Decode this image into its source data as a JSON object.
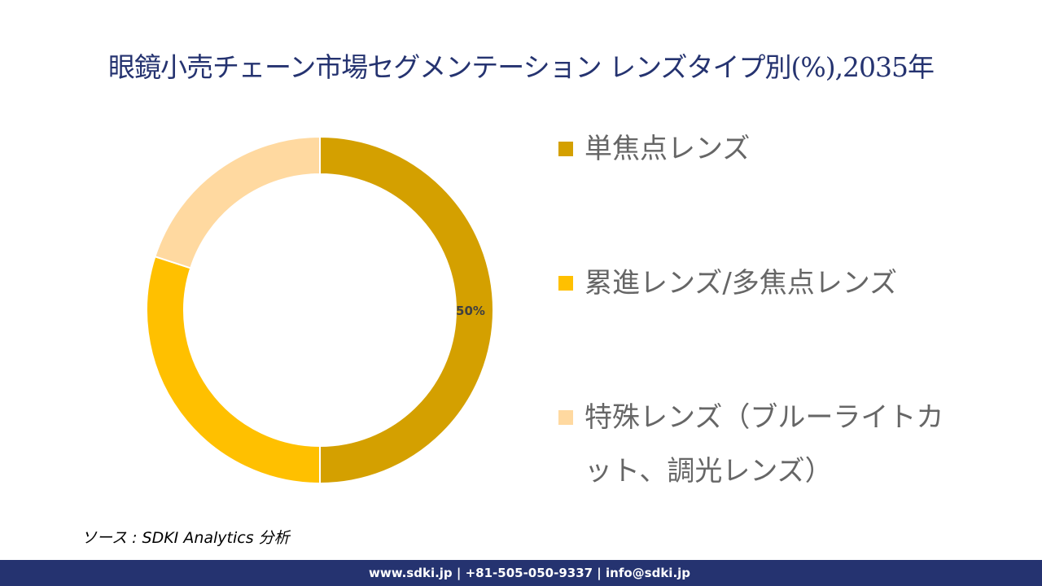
{
  "title": "眼鏡小売チェーン市場セグメンテーション レンズタイプ別(%),2035年",
  "chart_data": {
    "type": "pie",
    "subtype": "donut",
    "title": "眼鏡小売チェーン市場セグメンテーション レンズタイプ別(%),2035年",
    "categories": [
      "単焦点レンズ",
      "累進レンズ/多焦点レンズ",
      "特殊レンズ（ブルーライトカット、調光レンズ）"
    ],
    "values": [
      50,
      30,
      20
    ],
    "colors": [
      "#D4A000",
      "#FFC000",
      "#FFD9A0"
    ],
    "data_labels": [
      "50%",
      "",
      ""
    ],
    "legend_position": "right"
  },
  "source": "ソース : SDKI Analytics 分析",
  "footer": "www.sdki.jp | +81-505-050-9337 | info@sdki.jp"
}
